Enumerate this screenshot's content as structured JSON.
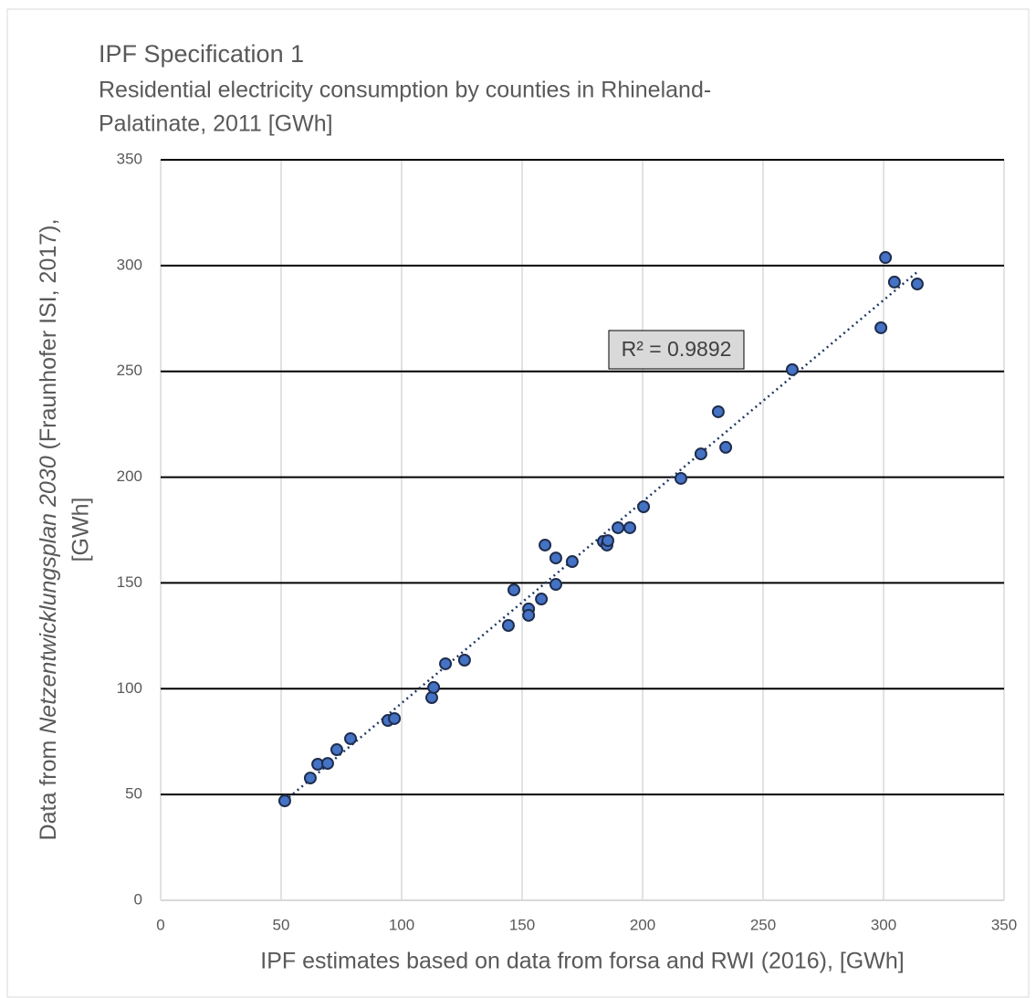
{
  "chart_data": {
    "type": "scatter",
    "title": "IPF Specification 1",
    "subtitle": [
      "Residential electricity consumption by counties in Rhineland-",
      "Palatinate, 2011 [GWh]"
    ],
    "x_label": "IPF estimates based on data from forsa and RWI (2016), [GWh]",
    "y_label": {
      "prefix": "Data from ",
      "italic": "Netzentwicklungsplan 2030",
      "suffix": " (Fraunhofer ISI, 2017),",
      "line2": "[GWh]"
    },
    "annotation": "R² = 0.9892",
    "xlim": [
      0,
      350
    ],
    "xticks": [
      0,
      50,
      100,
      150,
      200,
      250,
      300,
      350
    ],
    "ylim": [
      0,
      350
    ],
    "yticks": [
      0,
      50,
      100,
      150,
      200,
      250,
      300,
      350
    ],
    "grid": true,
    "color": "#4472c4",
    "series": [
      {
        "x": [
          51.5,
          62.1,
          65.2,
          69.3,
          73.1,
          78.8,
          94.3,
          97.0,
          112.5,
          113.3,
          118.2,
          126.1,
          144.3,
          146.6,
          152.7,
          152.7,
          158.0,
          159.5,
          164.0,
          164.0,
          170.8,
          183.7,
          185.2,
          185.6,
          189.8,
          194.7,
          200.4,
          215.9,
          224.2,
          231.4,
          234.5,
          262.1,
          298.9,
          300.8,
          304.5,
          314.0
        ],
        "values": [
          47.0,
          57.8,
          64.3,
          64.7,
          71.2,
          76.4,
          85.0,
          85.9,
          95.8,
          100.6,
          111.8,
          113.5,
          129.9,
          146.7,
          137.7,
          134.7,
          142.4,
          167.9,
          161.8,
          149.3,
          160.1,
          169.6,
          167.9,
          170.0,
          176.1,
          176.1,
          186.0,
          199.4,
          211.0,
          230.9,
          214.1,
          250.8,
          270.6,
          303.8,
          292.2,
          291.3
        ]
      }
    ],
    "trendline": {
      "x": [
        51.5,
        314.0
      ],
      "values": [
        47.0,
        297.0
      ]
    }
  }
}
